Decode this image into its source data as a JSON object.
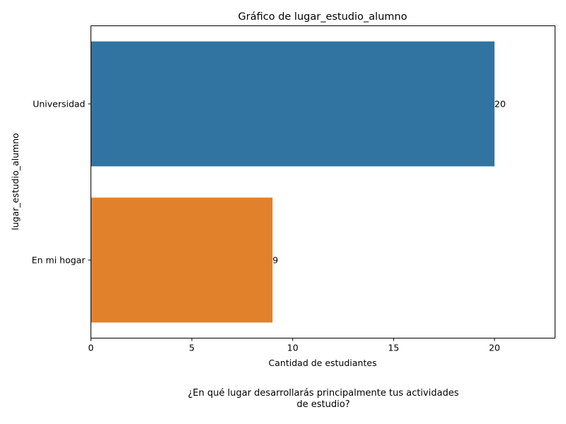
{
  "chart_data": {
    "type": "bar",
    "orientation": "horizontal",
    "title": "Gráfico de lugar_estudio_alumno",
    "xlabel": "Cantidad de estudiantes",
    "ylabel": "lugar_estudio_alumno",
    "categories": [
      "Universidad",
      "En mi hogar"
    ],
    "values": [
      20,
      9
    ],
    "colors": [
      "#3274a1",
      "#e1812c"
    ],
    "xlim": [
      0,
      23
    ],
    "xticks": [
      0,
      5,
      10,
      15,
      20
    ],
    "grid": false,
    "data_labels": [
      "20",
      "9"
    ]
  },
  "caption": {
    "line1": "¿En qué lugar desarrollarás principalmente tus actividades",
    "line2": "de estudio?"
  }
}
